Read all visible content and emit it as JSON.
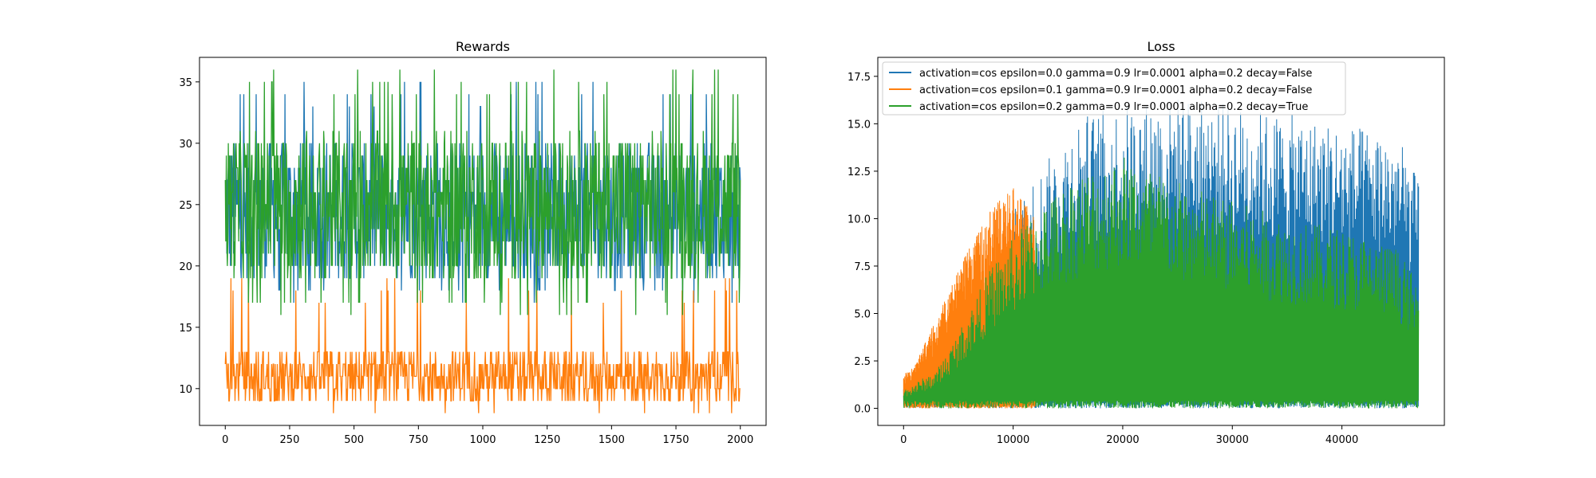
{
  "chart_data": [
    {
      "type": "line",
      "title": "Rewards",
      "xlabel": "",
      "ylabel": "",
      "xlim": [
        -100,
        2100
      ],
      "ylim": [
        7,
        37
      ],
      "xticks": [
        0,
        250,
        500,
        750,
        1000,
        1250,
        1500,
        1750,
        2000
      ],
      "yticks": [
        10,
        15,
        20,
        25,
        30,
        35
      ],
      "grid": false,
      "legend": null,
      "series": [
        {
          "color": "#1f77b4",
          "x_range": [
            0,
            2000
          ],
          "points": 2000,
          "min": 17,
          "max": 35,
          "typical_low": 19,
          "typical_high": 30
        },
        {
          "color": "#ff7f0e",
          "x_range": [
            0,
            2000
          ],
          "points": 2000,
          "min": 8,
          "max": 19,
          "typical_low": 9,
          "typical_high": 13
        },
        {
          "color": "#2ca02c",
          "x_range": [
            0,
            2000
          ],
          "points": 2000,
          "min": 16,
          "max": 36,
          "typical_low": 19,
          "typical_high": 31
        }
      ]
    },
    {
      "type": "line",
      "title": "Loss",
      "xlabel": "",
      "ylabel": "",
      "xlim": [
        -2350,
        49350
      ],
      "ylim": [
        -0.9,
        18.5
      ],
      "xticks": [
        0,
        10000,
        20000,
        30000,
        40000
      ],
      "yticks": [
        0.0,
        2.5,
        5.0,
        7.5,
        10.0,
        12.5,
        15.0,
        17.5
      ],
      "grid": false,
      "legend": "upper left",
      "series": [
        {
          "name": "activation=cos epsilon=0.0 gamma=0.9 lr=0.0001 alpha=0.2 decay=False",
          "color": "#1f77b4",
          "x_range": [
            0,
            47000
          ],
          "envelope_x": [
            0,
            5000,
            10000,
            13000,
            16000,
            20000,
            25000,
            30000,
            35000,
            40000,
            45000,
            47000
          ],
          "envelope_max": [
            1.0,
            1.5,
            10.5,
            13.0,
            15.5,
            16.0,
            16.5,
            16.0,
            15.5,
            15.0,
            14.5,
            12.0
          ],
          "min": 0.0
        },
        {
          "name": "activation=cos epsilon=0.1 gamma=0.9 lr=0.0001 alpha=0.2 decay=False",
          "color": "#ff7f0e",
          "x_range": [
            0,
            12000
          ],
          "envelope_x": [
            0,
            1000,
            2000,
            4000,
            6000,
            8000,
            10000,
            12000
          ],
          "envelope_max": [
            1.8,
            2.2,
            3.5,
            6.0,
            8.5,
            10.5,
            11.8,
            10.0
          ],
          "min": 0.0
        },
        {
          "name": "activation=cos epsilon=0.2 gamma=0.9 lr=0.0001 alpha=0.2 decay=True",
          "color": "#2ca02c",
          "x_range": [
            0,
            47000
          ],
          "envelope_x": [
            0,
            3000,
            5000,
            8000,
            12000,
            16000,
            20000,
            25000,
            30000,
            35000,
            40000,
            45000,
            47000
          ],
          "envelope_max": [
            1.0,
            2.0,
            4.0,
            7.5,
            10.5,
            12.5,
            13.5,
            12.0,
            11.0,
            10.0,
            9.5,
            8.5,
            6.5
          ],
          "min": 0.0
        }
      ]
    }
  ]
}
